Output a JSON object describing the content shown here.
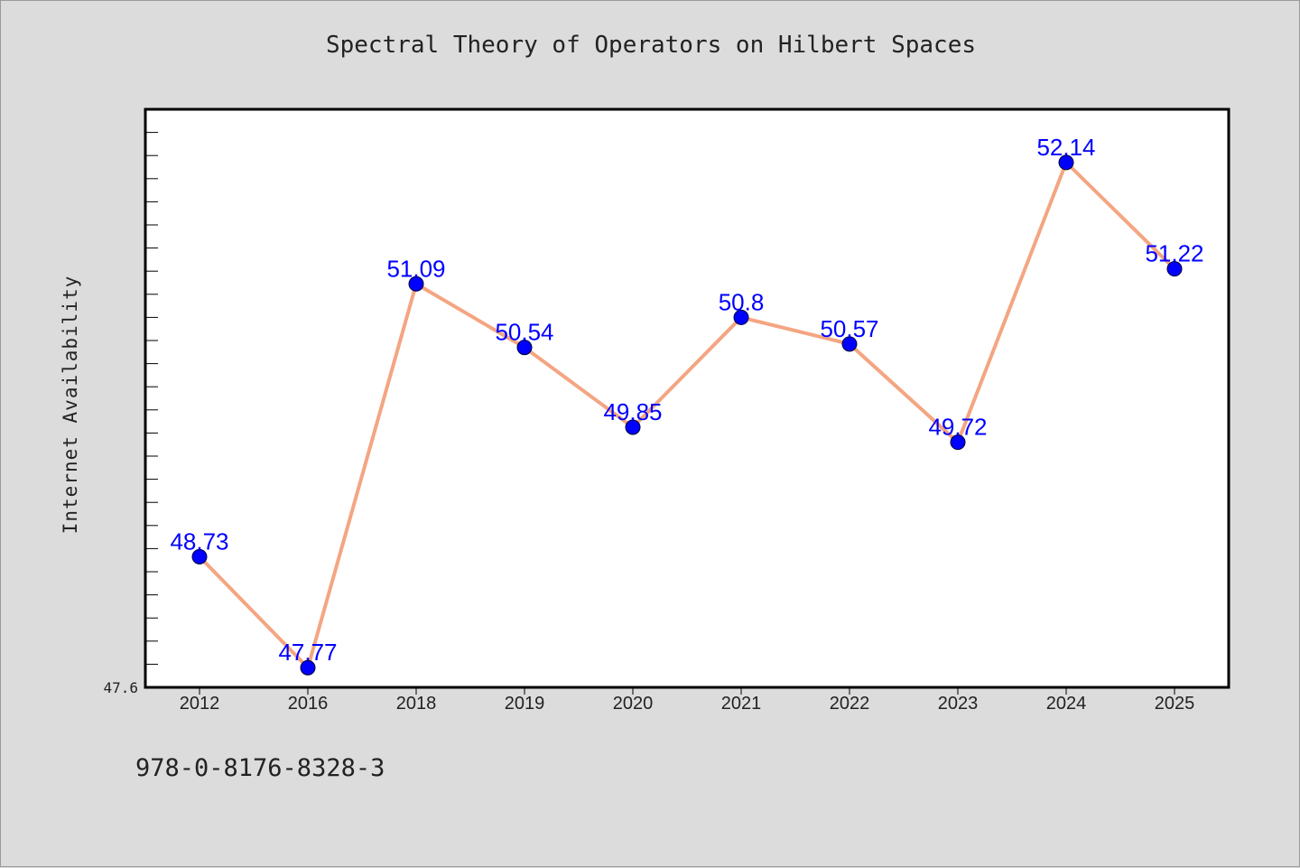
{
  "chart_data": {
    "type": "line",
    "title": "Spectral Theory of Operators on Hilbert Spaces",
    "xlabel": "",
    "ylabel": "Internet Availability",
    "categories": [
      "2012",
      "2016",
      "2018",
      "2019",
      "2020",
      "2021",
      "2022",
      "2023",
      "2024",
      "2025"
    ],
    "values": [
      48.73,
      47.77,
      51.09,
      50.54,
      49.85,
      50.8,
      50.57,
      49.72,
      52.14,
      51.22
    ],
    "data_labels": [
      "48.73",
      "47.77",
      "51.09",
      "50.54",
      "49.85",
      "50.8",
      "50.57",
      "49.72",
      "52.14",
      "51.22"
    ],
    "ylim": [
      47.6,
      52.6
    ],
    "y_tick_labels": [
      "47.6"
    ],
    "grid": false,
    "legend": "none",
    "colors": {
      "line": "#f4a582",
      "marker": "#0000ff",
      "label": "#0000ff",
      "background": "#dcdcdc",
      "plot_background": "#ffffff"
    }
  },
  "footer": {
    "code": "978-0-8176-8328-3"
  }
}
